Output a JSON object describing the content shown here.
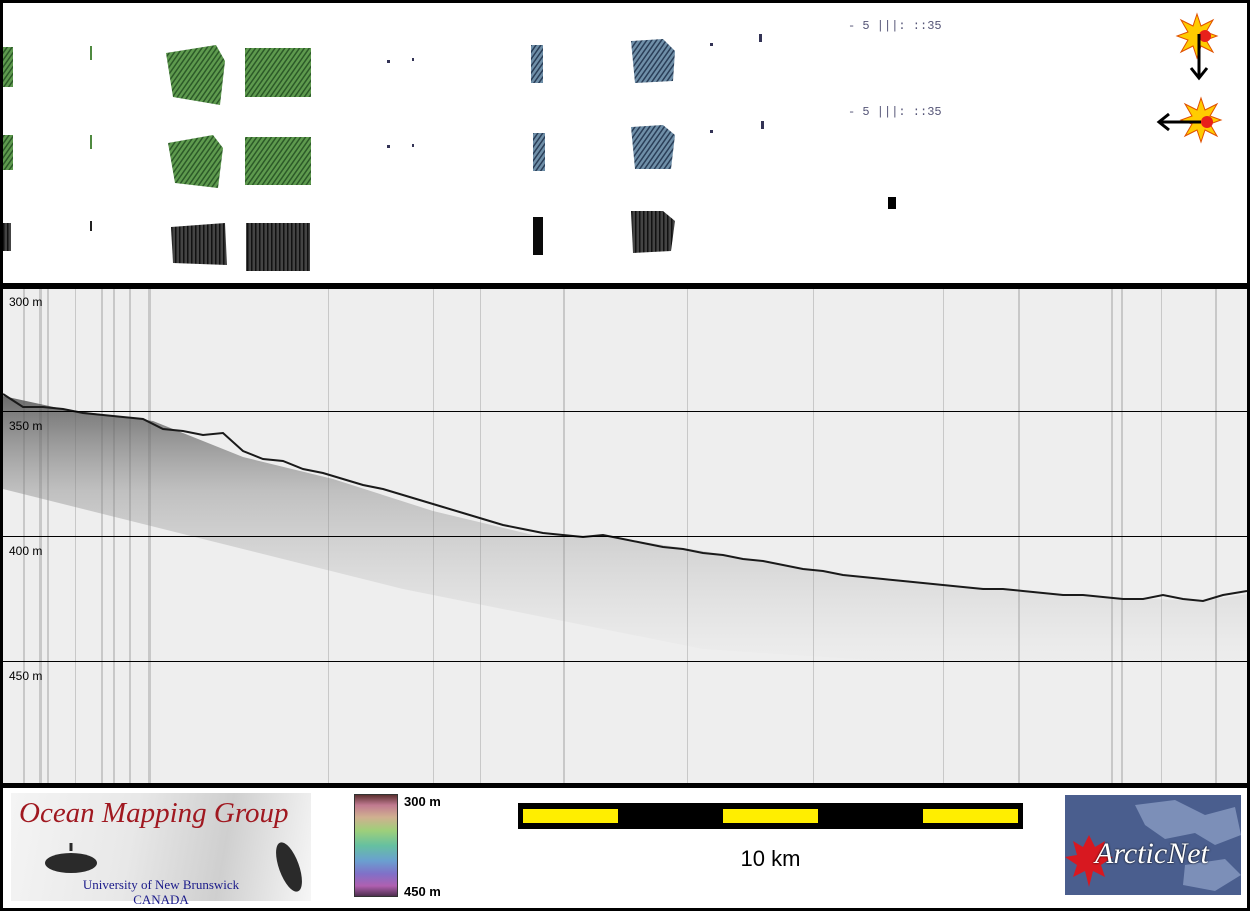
{
  "depth_labels": [
    "300 m",
    "350 m",
    "400 m",
    "450 m"
  ],
  "colorbar": {
    "top_label": "300 m",
    "bottom_label": "450 m"
  },
  "scale": {
    "label": "10 km"
  },
  "logos": {
    "omg_title": "Ocean Mapping Group",
    "omg_line1": "University of New Brunswick",
    "omg_line2": "CANADA",
    "arcticnet": "ArcticNet"
  },
  "icons": [
    "sun-illumination-south-icon",
    "sun-illumination-west-icon"
  ],
  "colors": {
    "scale_yellow": "#ffee00",
    "omg_red": "#a01820",
    "arcticnet_blue": "#4a5e8e"
  }
}
